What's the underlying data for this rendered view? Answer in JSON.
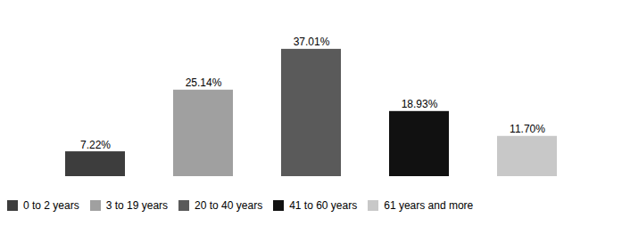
{
  "chart_data": {
    "type": "bar",
    "categories": [
      "0 to 2 years",
      "3 to 19 years",
      "20 to 40 years",
      "41 to 60 years",
      "61 years and more"
    ],
    "values": [
      7.22,
      25.14,
      37.01,
      18.93,
      11.7
    ],
    "value_labels": [
      "7.22%",
      "25.14%",
      "37.01%",
      "18.93%",
      "11.70%"
    ],
    "colors": [
      "#3d3d3d",
      "#a0a0a0",
      "#5a5a5a",
      "#111111",
      "#c8c8c8"
    ],
    "ylim": [
      0,
      45
    ],
    "data_labels": true,
    "tick_labels": false,
    "grid": false,
    "legend": "bottom"
  }
}
